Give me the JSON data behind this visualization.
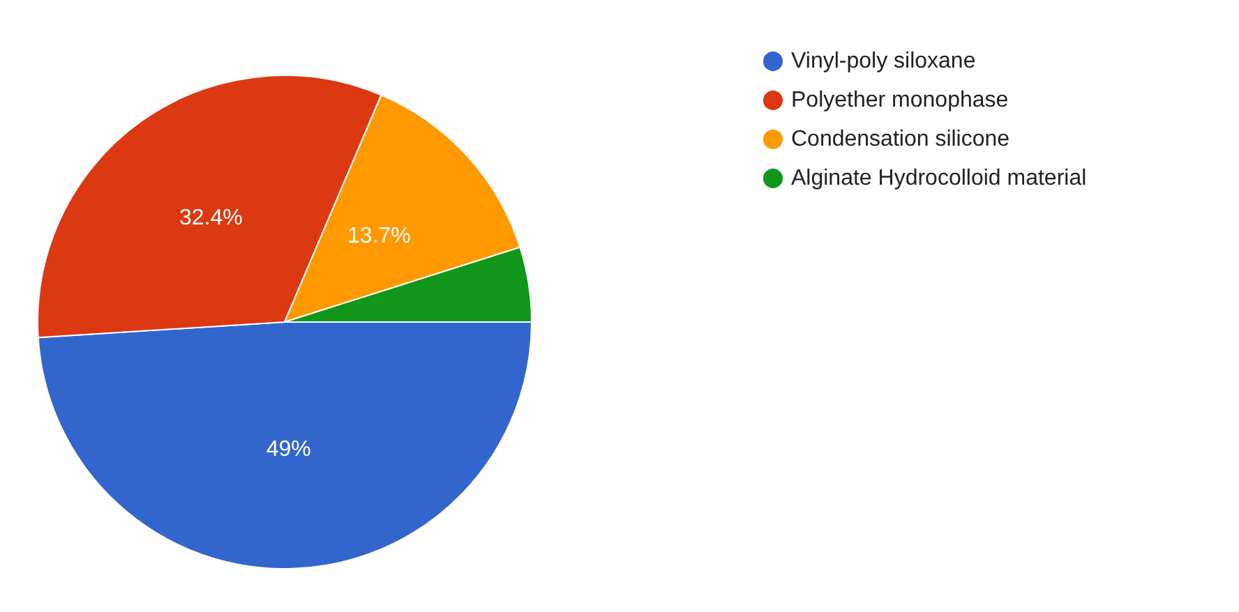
{
  "chart_data": {
    "type": "pie",
    "categories": [
      "Vinyl-poly siloxane",
      "Polyether monophase",
      "Condensation silicone",
      "Alginate Hydrocolloid material"
    ],
    "values": [
      49,
      32.4,
      13.7,
      4.9
    ],
    "colors": [
      "#3366cc",
      "#dc3912",
      "#ff9900",
      "#109618"
    ],
    "value_labels": [
      "49%",
      "32.4%",
      "13.7%",
      null
    ],
    "legend": "top right"
  }
}
